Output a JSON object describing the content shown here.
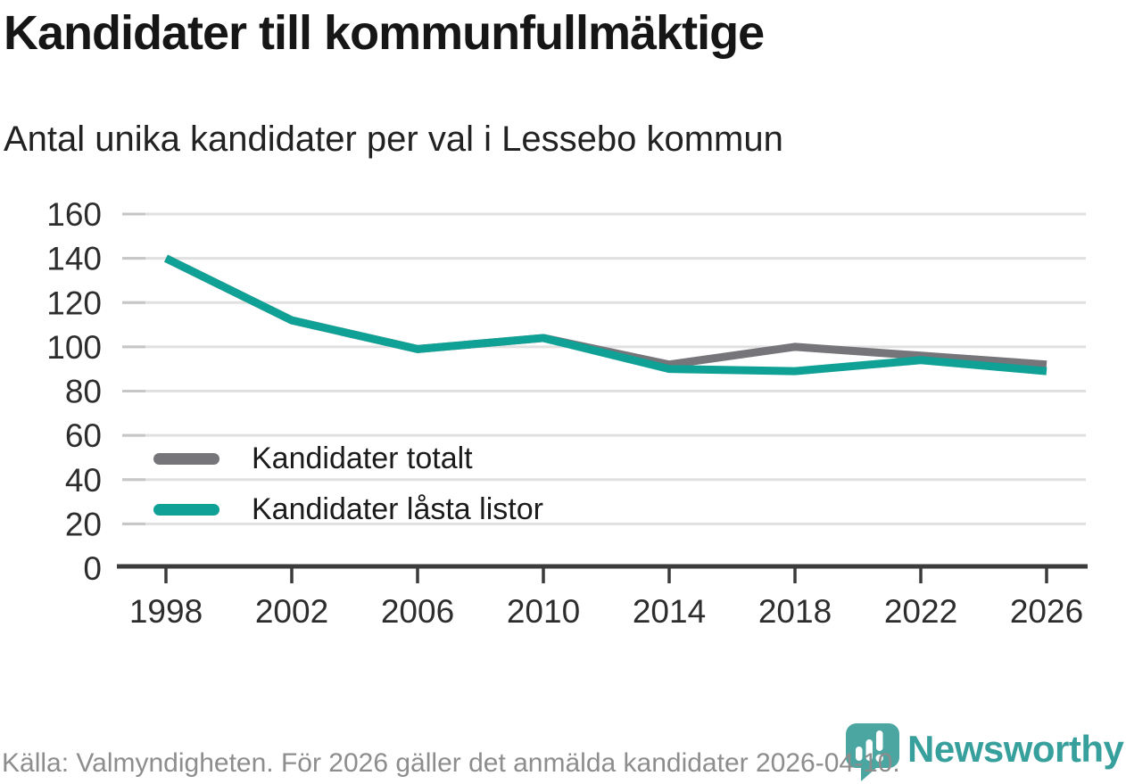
{
  "header": {
    "title": "Kandidater till kommunfullmäktige",
    "subtitle": "Antal unika kandidater per val i Lessebo kommun"
  },
  "chart_data": {
    "type": "line",
    "title": "Kandidater till kommunfullmäktige",
    "subtitle": "Antal unika kandidater per val i Lessebo kommun",
    "categories": [
      "1998",
      "2002",
      "2006",
      "2010",
      "2014",
      "2018",
      "2022",
      "2026"
    ],
    "series": [
      {
        "name": "Kandidater totalt",
        "color": "#76757A",
        "values": [
          140,
          112,
          99,
          104,
          92,
          100,
          96,
          92
        ]
      },
      {
        "name": "Kandidater låsta listor",
        "color": "#0FA195",
        "values": [
          140,
          112,
          99,
          104,
          90,
          89,
          94,
          89
        ]
      }
    ],
    "xlabel": "",
    "ylabel": "",
    "ylim": [
      0,
      160
    ],
    "yticks": [
      0,
      20,
      40,
      60,
      80,
      100,
      120,
      140,
      160
    ],
    "grid": "horizontal",
    "legend_position": "inside-bottom-left"
  },
  "footer": {
    "source_text": "Källa: Valmyndigheten. För 2026 gäller det anmälda kandidater 2026-04-10."
  },
  "logo": {
    "brand": "Newsworthy",
    "icon": "newsworthy-pin-barchart-icon",
    "pin_color": "#4BA5A1",
    "text_color": "#38A09C"
  },
  "colors": {
    "axis": "#3B3B3B",
    "gridline": "#E0E0E0",
    "tick_label": "#2D2D2D"
  }
}
